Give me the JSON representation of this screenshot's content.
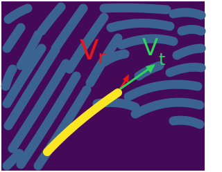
{
  "labels": {
    "radial": {
      "symbol": "V",
      "subscript": "r"
    },
    "tangential": {
      "symbol": "V",
      "subscript": "t"
    }
  }
}
